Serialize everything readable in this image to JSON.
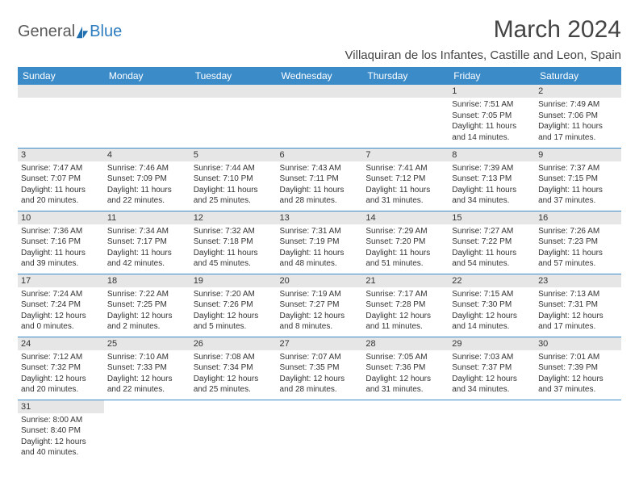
{
  "logo": {
    "general": "General",
    "blue": "Blue"
  },
  "title": "March 2024",
  "location": "Villaquiran de los Infantes, Castille and Leon, Spain",
  "colors": {
    "header_bg": "#3b8bc9",
    "header_text": "#ffffff",
    "daynum_bg": "#e6e6e6",
    "rule": "#3b8bc9",
    "text": "#333333",
    "logo_gray": "#5a5a5a",
    "logo_blue": "#2b7bbf",
    "logo_sail": "#1f6fb0"
  },
  "weekdays": [
    "Sunday",
    "Monday",
    "Tuesday",
    "Wednesday",
    "Thursday",
    "Friday",
    "Saturday"
  ],
  "weeks": [
    [
      null,
      null,
      null,
      null,
      null,
      {
        "n": "1",
        "sr": "Sunrise: 7:51 AM",
        "ss": "Sunset: 7:05 PM",
        "d1": "Daylight: 11 hours",
        "d2": "and 14 minutes."
      },
      {
        "n": "2",
        "sr": "Sunrise: 7:49 AM",
        "ss": "Sunset: 7:06 PM",
        "d1": "Daylight: 11 hours",
        "d2": "and 17 minutes."
      }
    ],
    [
      {
        "n": "3",
        "sr": "Sunrise: 7:47 AM",
        "ss": "Sunset: 7:07 PM",
        "d1": "Daylight: 11 hours",
        "d2": "and 20 minutes."
      },
      {
        "n": "4",
        "sr": "Sunrise: 7:46 AM",
        "ss": "Sunset: 7:09 PM",
        "d1": "Daylight: 11 hours",
        "d2": "and 22 minutes."
      },
      {
        "n": "5",
        "sr": "Sunrise: 7:44 AM",
        "ss": "Sunset: 7:10 PM",
        "d1": "Daylight: 11 hours",
        "d2": "and 25 minutes."
      },
      {
        "n": "6",
        "sr": "Sunrise: 7:43 AM",
        "ss": "Sunset: 7:11 PM",
        "d1": "Daylight: 11 hours",
        "d2": "and 28 minutes."
      },
      {
        "n": "7",
        "sr": "Sunrise: 7:41 AM",
        "ss": "Sunset: 7:12 PM",
        "d1": "Daylight: 11 hours",
        "d2": "and 31 minutes."
      },
      {
        "n": "8",
        "sr": "Sunrise: 7:39 AM",
        "ss": "Sunset: 7:13 PM",
        "d1": "Daylight: 11 hours",
        "d2": "and 34 minutes."
      },
      {
        "n": "9",
        "sr": "Sunrise: 7:37 AM",
        "ss": "Sunset: 7:15 PM",
        "d1": "Daylight: 11 hours",
        "d2": "and 37 minutes."
      }
    ],
    [
      {
        "n": "10",
        "sr": "Sunrise: 7:36 AM",
        "ss": "Sunset: 7:16 PM",
        "d1": "Daylight: 11 hours",
        "d2": "and 39 minutes."
      },
      {
        "n": "11",
        "sr": "Sunrise: 7:34 AM",
        "ss": "Sunset: 7:17 PM",
        "d1": "Daylight: 11 hours",
        "d2": "and 42 minutes."
      },
      {
        "n": "12",
        "sr": "Sunrise: 7:32 AM",
        "ss": "Sunset: 7:18 PM",
        "d1": "Daylight: 11 hours",
        "d2": "and 45 minutes."
      },
      {
        "n": "13",
        "sr": "Sunrise: 7:31 AM",
        "ss": "Sunset: 7:19 PM",
        "d1": "Daylight: 11 hours",
        "d2": "and 48 minutes."
      },
      {
        "n": "14",
        "sr": "Sunrise: 7:29 AM",
        "ss": "Sunset: 7:20 PM",
        "d1": "Daylight: 11 hours",
        "d2": "and 51 minutes."
      },
      {
        "n": "15",
        "sr": "Sunrise: 7:27 AM",
        "ss": "Sunset: 7:22 PM",
        "d1": "Daylight: 11 hours",
        "d2": "and 54 minutes."
      },
      {
        "n": "16",
        "sr": "Sunrise: 7:26 AM",
        "ss": "Sunset: 7:23 PM",
        "d1": "Daylight: 11 hours",
        "d2": "and 57 minutes."
      }
    ],
    [
      {
        "n": "17",
        "sr": "Sunrise: 7:24 AM",
        "ss": "Sunset: 7:24 PM",
        "d1": "Daylight: 12 hours",
        "d2": "and 0 minutes."
      },
      {
        "n": "18",
        "sr": "Sunrise: 7:22 AM",
        "ss": "Sunset: 7:25 PM",
        "d1": "Daylight: 12 hours",
        "d2": "and 2 minutes."
      },
      {
        "n": "19",
        "sr": "Sunrise: 7:20 AM",
        "ss": "Sunset: 7:26 PM",
        "d1": "Daylight: 12 hours",
        "d2": "and 5 minutes."
      },
      {
        "n": "20",
        "sr": "Sunrise: 7:19 AM",
        "ss": "Sunset: 7:27 PM",
        "d1": "Daylight: 12 hours",
        "d2": "and 8 minutes."
      },
      {
        "n": "21",
        "sr": "Sunrise: 7:17 AM",
        "ss": "Sunset: 7:28 PM",
        "d1": "Daylight: 12 hours",
        "d2": "and 11 minutes."
      },
      {
        "n": "22",
        "sr": "Sunrise: 7:15 AM",
        "ss": "Sunset: 7:30 PM",
        "d1": "Daylight: 12 hours",
        "d2": "and 14 minutes."
      },
      {
        "n": "23",
        "sr": "Sunrise: 7:13 AM",
        "ss": "Sunset: 7:31 PM",
        "d1": "Daylight: 12 hours",
        "d2": "and 17 minutes."
      }
    ],
    [
      {
        "n": "24",
        "sr": "Sunrise: 7:12 AM",
        "ss": "Sunset: 7:32 PM",
        "d1": "Daylight: 12 hours",
        "d2": "and 20 minutes."
      },
      {
        "n": "25",
        "sr": "Sunrise: 7:10 AM",
        "ss": "Sunset: 7:33 PM",
        "d1": "Daylight: 12 hours",
        "d2": "and 22 minutes."
      },
      {
        "n": "26",
        "sr": "Sunrise: 7:08 AM",
        "ss": "Sunset: 7:34 PM",
        "d1": "Daylight: 12 hours",
        "d2": "and 25 minutes."
      },
      {
        "n": "27",
        "sr": "Sunrise: 7:07 AM",
        "ss": "Sunset: 7:35 PM",
        "d1": "Daylight: 12 hours",
        "d2": "and 28 minutes."
      },
      {
        "n": "28",
        "sr": "Sunrise: 7:05 AM",
        "ss": "Sunset: 7:36 PM",
        "d1": "Daylight: 12 hours",
        "d2": "and 31 minutes."
      },
      {
        "n": "29",
        "sr": "Sunrise: 7:03 AM",
        "ss": "Sunset: 7:37 PM",
        "d1": "Daylight: 12 hours",
        "d2": "and 34 minutes."
      },
      {
        "n": "30",
        "sr": "Sunrise: 7:01 AM",
        "ss": "Sunset: 7:39 PM",
        "d1": "Daylight: 12 hours",
        "d2": "and 37 minutes."
      }
    ],
    [
      {
        "n": "31",
        "sr": "Sunrise: 8:00 AM",
        "ss": "Sunset: 8:40 PM",
        "d1": "Daylight: 12 hours",
        "d2": "and 40 minutes."
      },
      null,
      null,
      null,
      null,
      null,
      null
    ]
  ]
}
